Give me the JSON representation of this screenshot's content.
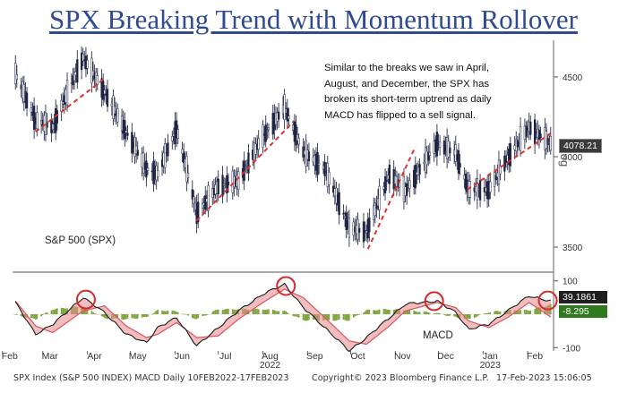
{
  "title": "SPX Breaking Trend with Momentum Rollover",
  "annotation": "Similar to the breaks we saw in April, August, and December, the SPX has broken its short-term uptrend as daily MACD has flipped to a sell signal.",
  "price_panel_label": "S&P 500 (SPX)",
  "macd_panel_label": "MACD",
  "axis_side_label": "log",
  "last_price": "4078.21",
  "macd_last": "39.1861",
  "signal_last": "-8.295",
  "footer": {
    "left": "SPX Index (S&P 500 INDEX) MACD  Daily 10FEB2022-17FEB2023",
    "center": "Copyright© 2023 Bloomberg Finance L.P.",
    "right": "17-Feb-2023 15:06:05"
  },
  "colors": {
    "title": "#2f4a8f",
    "trendline": "#e0302a",
    "circle": "#d42a2a",
    "macd_line": "#1a1a1a",
    "signal_band": "#e8868a",
    "histogram": "#7ea43a",
    "last_price_box": "#3a3a3a",
    "macd_box": "#1f1f1f",
    "signal_box": "#2f7a1f"
  },
  "chart_data": [
    {
      "type": "ohlc",
      "series": [
        {
          "name": "S&P 500 (SPX)"
        }
      ],
      "scale": "log",
      "ylim": [
        3400,
        4750
      ],
      "yticks": [
        3500,
        4000,
        4500
      ],
      "xticks": [
        "Feb",
        "Mar",
        "Apr",
        "May",
        "Jun",
        "Jul",
        "Aug",
        "Sep",
        "Oct",
        "Nov",
        "Dec",
        "Jan",
        "Feb"
      ],
      "x_group_labels": [
        {
          "label": "2022",
          "under": "Aug"
        },
        {
          "label": "2023",
          "under": "Jan"
        }
      ],
      "x": [
        "2022-02-10",
        "2022-02-24",
        "2022-03-08",
        "2022-03-29",
        "2022-04-13",
        "2022-04-28",
        "2022-05-12",
        "2022-05-20",
        "2022-06-02",
        "2022-06-16",
        "2022-07-01",
        "2022-07-15",
        "2022-08-01",
        "2022-08-16",
        "2022-08-29",
        "2022-09-13",
        "2022-09-30",
        "2022-10-12",
        "2022-10-28",
        "2022-11-08",
        "2022-11-30",
        "2022-12-13",
        "2022-12-22",
        "2023-01-05",
        "2023-01-18",
        "2023-02-02",
        "2023-02-17"
      ],
      "close": [
        4520,
        4220,
        4180,
        4630,
        4400,
        4150,
        3930,
        3900,
        4170,
        3680,
        3830,
        3860,
        4120,
        4300,
        4030,
        3930,
        3600,
        3580,
        3900,
        3800,
        4080,
        4020,
        3810,
        3810,
        3990,
        4180,
        4078.21
      ],
      "trendlines": [
        {
          "from": [
            "2022-02-24",
            4150
          ],
          "to": [
            "2022-04-13",
            4490
          ]
        },
        {
          "from": [
            "2022-06-16",
            3640
          ],
          "to": [
            "2022-08-22",
            4210
          ]
        },
        {
          "from": [
            "2022-10-13",
            3490
          ],
          "to": [
            "2022-11-15",
            4060
          ]
        },
        {
          "from": [
            "2022-12-21",
            3810
          ],
          "to": [
            "2023-02-17",
            4140
          ]
        }
      ]
    },
    {
      "type": "line",
      "title": "MACD",
      "ylim": [
        -110,
        110
      ],
      "yticks": [
        100,
        -100
      ],
      "series": [
        {
          "name": "MACD",
          "values": [
            35,
            -60,
            -30,
            50,
            5,
            -60,
            -85,
            -40,
            -10,
            -95,
            -40,
            10,
            60,
            90,
            20,
            -40,
            -110,
            -70,
            -10,
            30,
            40,
            5,
            -45,
            -30,
            10,
            55,
            39.1861
          ]
        },
        {
          "name": "Signal",
          "values": [
            40,
            -35,
            -55,
            10,
            25,
            -35,
            -70,
            -60,
            -25,
            -70,
            -65,
            -15,
            35,
            75,
            50,
            -10,
            -80,
            -90,
            -35,
            10,
            35,
            20,
            -20,
            -40,
            -10,
            35,
            -8.295
          ]
        }
      ],
      "rollover_circles": [
        "2022-03-31",
        "2022-08-17",
        "2022-11-28",
        "2023-02-15"
      ]
    }
  ]
}
